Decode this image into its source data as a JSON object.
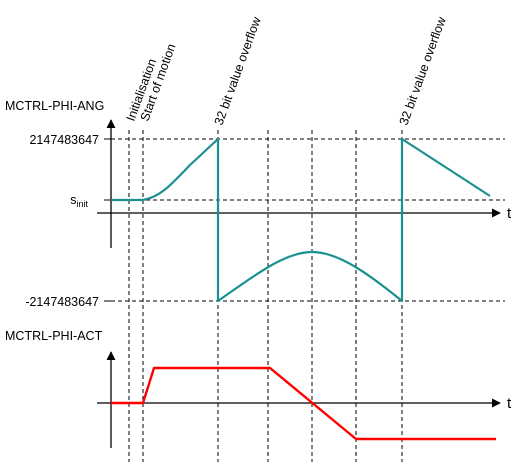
{
  "top_plot": {
    "title": "MCTRL-PHI-ANG",
    "y_max_label": "2147483647",
    "y_min_label": "-2147483647",
    "s_init_main": "s",
    "s_init_sub": "init",
    "axis_label": "t"
  },
  "bottom_plot": {
    "title": "MCTRL-PHI-ACT",
    "axis_label": "t"
  },
  "events": {
    "initialisation": "Initialisation",
    "start_of_motion": "Start of motion",
    "overflow_1": "32 bit value overflow",
    "overflow_2": "32 bit value overflow"
  },
  "colors": {
    "angle_curve": "#1a9090",
    "velocity_curve": "#ff0000",
    "axes": "#000000",
    "guides": "#000000"
  }
}
